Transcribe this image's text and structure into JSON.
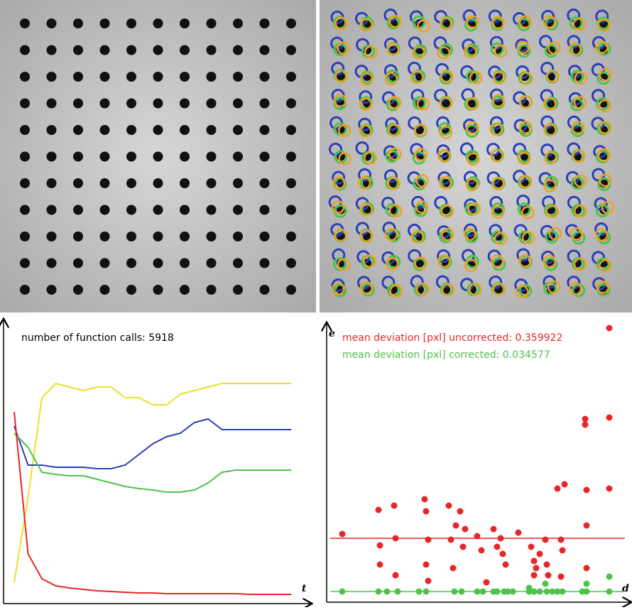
{
  "chart_data": [
    {
      "type": "line",
      "annotation": "number of function calls: 5918",
      "xlabel": "t",
      "xlim": [
        0,
        410
      ],
      "ylim": [
        0,
        390
      ],
      "x": [
        0,
        20,
        40,
        60,
        80,
        100,
        120,
        140,
        160,
        180,
        200,
        220,
        240,
        260,
        280,
        300,
        320,
        340,
        360,
        380,
        400
      ],
      "series": [
        {
          "color": "#e8e02a",
          "values": [
            25,
            145,
            285,
            305,
            300,
            295,
            300,
            300,
            285,
            285,
            275,
            275,
            290,
            295,
            300,
            305,
            305,
            305,
            305,
            305,
            305
          ]
        },
        {
          "color": "#2b3fb5",
          "values": [
            245,
            190,
            190,
            187,
            187,
            187,
            185,
            185,
            190,
            205,
            220,
            230,
            235,
            250,
            255,
            240,
            240,
            240,
            240,
            240,
            240
          ]
        },
        {
          "color": "#4fc24a",
          "values": [
            235,
            215,
            180,
            177,
            175,
            175,
            170,
            165,
            160,
            157,
            155,
            152,
            152,
            155,
            165,
            180,
            183,
            183,
            183,
            183,
            183
          ]
        },
        {
          "color": "#e8262a",
          "values": [
            265,
            65,
            30,
            20,
            17,
            15,
            13,
            12,
            11,
            10,
            10,
            9,
            9,
            9,
            9,
            9,
            9,
            8,
            8,
            8,
            8
          ]
        }
      ]
    },
    {
      "type": "scatter",
      "xlabel": "d",
      "ylabel": "e",
      "annotations": [
        {
          "text": "mean deviation [pxl] uncorrected: 0.359922",
          "color": "#e8262a"
        },
        {
          "text": "mean deviation [pxl] corrected: 0.034577",
          "color": "#4fc24a"
        }
      ],
      "xlim": [
        0,
        415
      ],
      "ylim": [
        0,
        390
      ],
      "reference_lines": [
        {
          "value": 87,
          "color": "#e8262a"
        },
        {
          "value": 12,
          "color": "#4fc24a"
        }
      ],
      "series": [
        {
          "color": "#e8262a",
          "x": [
            17,
            68,
            70,
            70,
            90,
            92,
            92,
            133,
            135,
            138,
            135,
            138,
            167,
            170,
            173,
            177,
            183,
            187,
            190,
            207,
            213,
            220,
            230,
            235,
            240,
            243,
            247,
            265,
            283,
            287,
            287,
            290,
            295,
            303,
            305,
            307,
            325,
            327,
            325,
            320,
            330,
            359,
            359,
            361,
            361,
            361,
            393,
            393,
            393
          ],
          "values": [
            93,
            127,
            77,
            50,
            133,
            87,
            35,
            142,
            125,
            85,
            50,
            27,
            133,
            85,
            45,
            105,
            125,
            75,
            100,
            90,
            70,
            25,
            100,
            75,
            87,
            65,
            50,
            95,
            75,
            55,
            35,
            45,
            65,
            85,
            50,
            35,
            85,
            70,
            33,
            157,
            163,
            255,
            247,
            155,
            105,
            45,
            383,
            257,
            157
          ]
        },
        {
          "color": "#4fc24a",
          "x": [
            17,
            68,
            80,
            95,
            125,
            135,
            175,
            185,
            207,
            215,
            230,
            235,
            245,
            250,
            257,
            280,
            287,
            295,
            305,
            313,
            320,
            327,
            355,
            361,
            393,
            393,
            361,
            303,
            280
          ],
          "values": [
            12,
            12,
            12,
            12,
            12,
            12,
            12,
            12,
            12,
            12,
            12,
            12,
            12,
            12,
            12,
            12,
            12,
            12,
            12,
            12,
            12,
            12,
            12,
            12,
            12,
            33,
            23,
            23,
            17
          ]
        }
      ]
    }
  ]
}
